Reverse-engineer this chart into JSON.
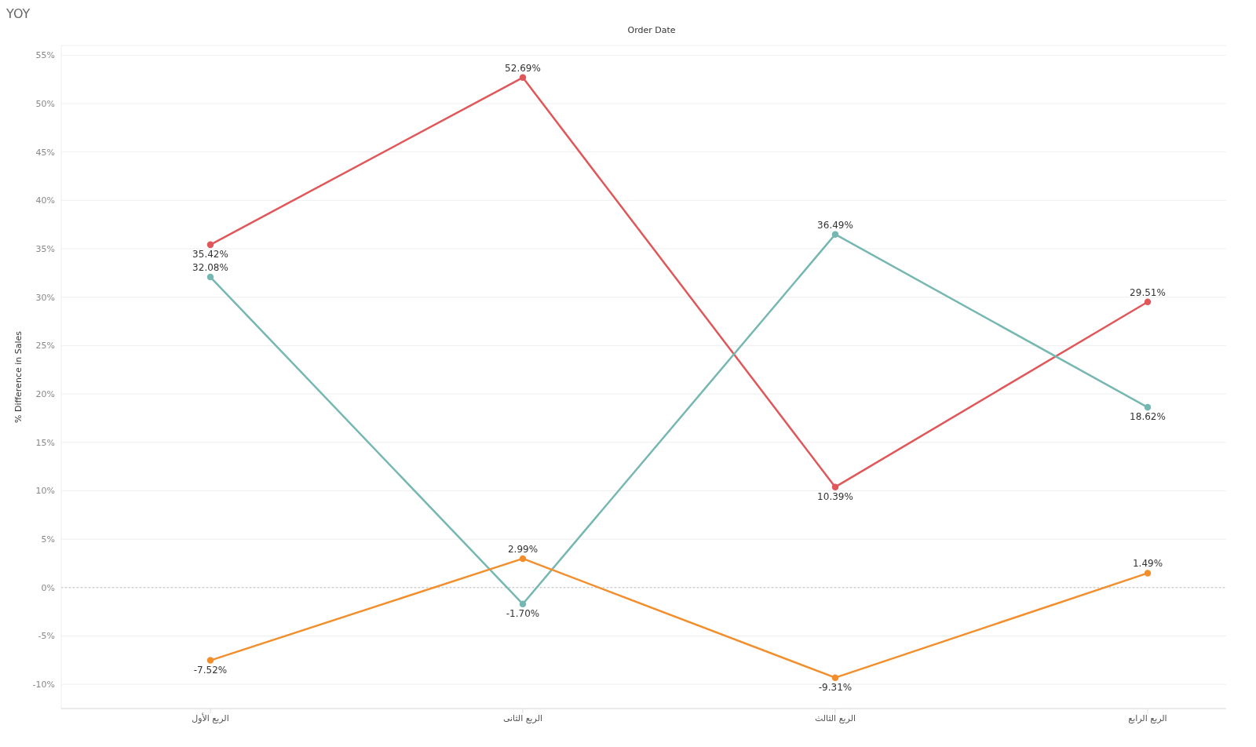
{
  "chart_data": {
    "type": "line",
    "title": "YOY",
    "xlabel": "Order Date",
    "ylabel": "% Difference in Sales",
    "categories": [
      "الربع الأول",
      "الربع الثانى",
      "الربع الثالث",
      "الربع الرابع"
    ],
    "series": [
      {
        "color": "#e15759",
        "values": [
          35.42,
          52.69,
          10.39,
          29.51
        ],
        "value_labels": [
          "35.42%",
          "52.69%",
          "10.39%",
          "29.51%"
        ]
      },
      {
        "color": "#76b7b2",
        "values": [
          32.08,
          -1.7,
          36.49,
          18.62
        ],
        "value_labels": [
          "32.08%",
          "-1.70%",
          "36.49%",
          "18.62%"
        ]
      },
      {
        "color": "#f28e2b",
        "values": [
          -7.52,
          2.99,
          -9.31,
          1.49
        ],
        "value_labels": [
          "-7.52%",
          "2.99%",
          "-9.31%",
          "1.49%"
        ]
      }
    ],
    "ylim": [
      -12.5,
      56
    ],
    "yticks": [
      {
        "value": -10,
        "label": "-10%"
      },
      {
        "value": -5,
        "label": "-5%"
      },
      {
        "value": 0,
        "label": "0%"
      },
      {
        "value": 5,
        "label": "5%"
      },
      {
        "value": 10,
        "label": "10%"
      },
      {
        "value": 15,
        "label": "15%"
      },
      {
        "value": 20,
        "label": "20%"
      },
      {
        "value": 25,
        "label": "25%"
      },
      {
        "value": 30,
        "label": "30%"
      },
      {
        "value": 35,
        "label": "35%"
      },
      {
        "value": 40,
        "label": "40%"
      },
      {
        "value": 45,
        "label": "45%"
      },
      {
        "value": 50,
        "label": "50%"
      },
      {
        "value": 55,
        "label": "55%"
      }
    ],
    "grid": "y",
    "marker": "circle",
    "line_style": "solid",
    "ref_lines": [
      {
        "axis": "y",
        "value": 0,
        "color": "#bbbbbb",
        "line_style": "dotted"
      }
    ]
  }
}
